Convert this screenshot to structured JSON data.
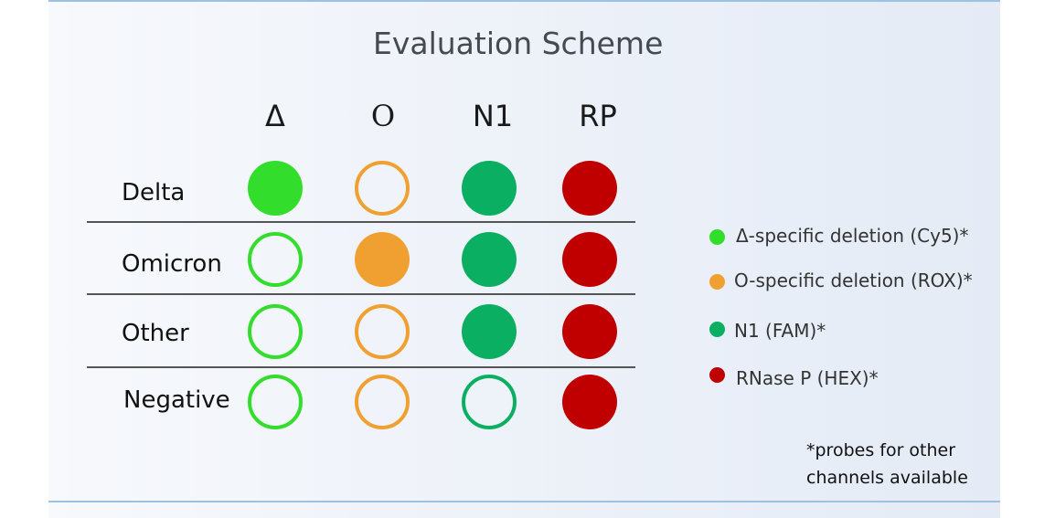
{
  "title": "Evaluation Scheme",
  "columns": [
    "Δ",
    "O",
    "N1",
    "RP"
  ],
  "rows": [
    {
      "label": "Delta",
      "cells": [
        "filled",
        "outline",
        "filled",
        "filled"
      ]
    },
    {
      "label": "Omicron",
      "cells": [
        "outline",
        "filled",
        "filled",
        "filled"
      ]
    },
    {
      "label": "Other",
      "cells": [
        "outline",
        "outline",
        "filled",
        "filled"
      ]
    },
    {
      "label": "Negative",
      "cells": [
        "outline",
        "outline",
        "outline",
        "filled"
      ]
    }
  ],
  "colors": [
    "#33dd2b",
    "#f0a030",
    "#0aaf62",
    "#c00000"
  ],
  "legend": [
    {
      "label": "Δ-specific deletion (Cy5)*"
    },
    {
      "label": "O-specific deletion (ROX)*"
    },
    {
      "label": "N1 (FAM)*"
    },
    {
      "label": "RNase P (HEX)*"
    }
  ],
  "note": {
    "line1": "*probes for other",
    "line2": "channels available"
  }
}
